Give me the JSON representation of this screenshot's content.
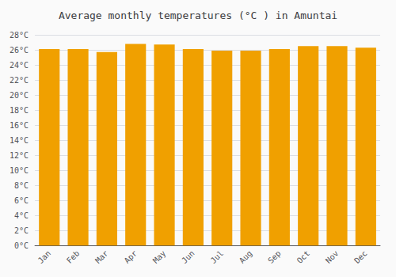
{
  "chart_data": {
    "type": "bar",
    "title": "Average monthly temperatures (°C ) in Amuntai",
    "categories": [
      "Jan",
      "Feb",
      "Mar",
      "Apr",
      "May",
      "Jun",
      "Jul",
      "Aug",
      "Sep",
      "Oct",
      "Nov",
      "Dec"
    ],
    "values": [
      26.1,
      26.1,
      25.7,
      26.8,
      26.7,
      26.1,
      25.9,
      25.9,
      26.1,
      26.5,
      26.5,
      26.3
    ],
    "color": "#F0A000",
    "ylim": [
      0,
      28
    ],
    "yticks": [
      {
        "value": 0,
        "label": "0°C"
      },
      {
        "value": 2,
        "label": "2°C"
      },
      {
        "value": 4,
        "label": "4°C"
      },
      {
        "value": 6,
        "label": "6°C"
      },
      {
        "value": 8,
        "label": "8°C"
      },
      {
        "value": 10,
        "label": "10°C"
      },
      {
        "value": 12,
        "label": "12°C"
      },
      {
        "value": 14,
        "label": "14°C"
      },
      {
        "value": 16,
        "label": "16°C"
      },
      {
        "value": 18,
        "label": "18°C"
      },
      {
        "value": 20,
        "label": "20°C"
      },
      {
        "value": 22,
        "label": "22°C"
      },
      {
        "value": 24,
        "label": "24°C"
      },
      {
        "value": 26,
        "label": "26°C"
      },
      {
        "value": 28,
        "label": "28°C"
      }
    ],
    "grid": true
  }
}
